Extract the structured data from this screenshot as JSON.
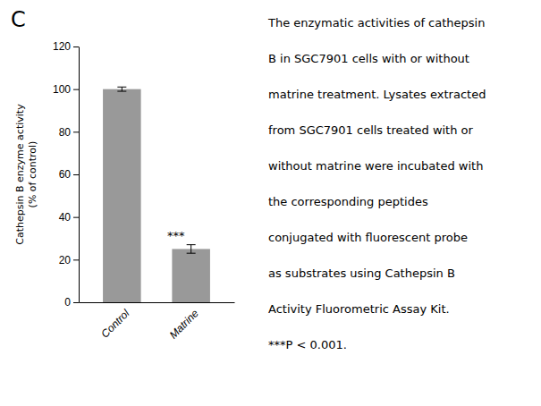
{
  "chart_data": {
    "type": "bar",
    "title": "C",
    "categories": [
      "Control",
      "Matrine"
    ],
    "values": [
      100,
      25
    ],
    "errors": [
      1,
      2
    ],
    "color": "#999999",
    "ylim": [
      0,
      120
    ],
    "yticks": [
      0,
      20,
      40,
      60,
      80,
      100,
      120
    ],
    "ylabel": "Cathepsin B enzyme activity\n(% of control)",
    "annotations": [
      {
        "text": "***",
        "category": "Matrine"
      }
    ],
    "caption": [
      "The enzymatic activities of cathepsin",
      "B in SGC7901 cells with or without",
      "matrine treatment. Lysates extracted",
      "from SGC7901 cells treated with or",
      "without matrine were incubated with",
      "the corresponding peptides",
      "conjugated with fluorescent probe",
      "as substrates using Cathepsin B",
      "Activity Fluorometric Assay Kit.",
      "***P < 0.001."
    ]
  }
}
